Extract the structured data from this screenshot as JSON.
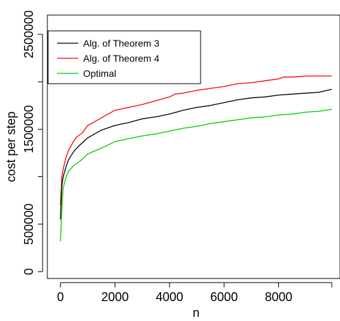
{
  "chart_data": {
    "type": "line",
    "xlabel": "n",
    "ylabel": "cost per step",
    "xlim": [
      0,
      10000
    ],
    "ylim": [
      0,
      2600000
    ],
    "x_ticks": [
      0,
      2000,
      4000,
      6000,
      8000
    ],
    "x_tick_labels": [
      "0",
      "2000",
      "4000",
      "6000",
      "8000"
    ],
    "y_ticks": [
      0,
      500000,
      1500000,
      2500000
    ],
    "y_tick_labels": [
      "0",
      "500000",
      "1500000",
      "2500000"
    ],
    "y_minor_ticks": [
      1000000,
      2000000
    ],
    "legend_position": "top-left",
    "grid": false,
    "series": [
      {
        "name": "Alg. of Theorem 3",
        "color": "#000000",
        "points": [
          [
            0,
            550000
          ],
          [
            50,
            900000
          ],
          [
            100,
            1000000
          ],
          [
            200,
            1100000
          ],
          [
            300,
            1180000
          ],
          [
            500,
            1270000
          ],
          [
            700,
            1330000
          ],
          [
            1000,
            1410000
          ],
          [
            1500,
            1490000
          ],
          [
            2000,
            1540000
          ],
          [
            2500,
            1570000
          ],
          [
            3000,
            1610000
          ],
          [
            3500,
            1630000
          ],
          [
            4000,
            1660000
          ],
          [
            4500,
            1700000
          ],
          [
            5000,
            1730000
          ],
          [
            5500,
            1750000
          ],
          [
            6000,
            1780000
          ],
          [
            6500,
            1810000
          ],
          [
            7000,
            1830000
          ],
          [
            7500,
            1840000
          ],
          [
            8000,
            1860000
          ],
          [
            8500,
            1870000
          ],
          [
            9000,
            1880000
          ],
          [
            9500,
            1890000
          ],
          [
            9950,
            1920000
          ]
        ]
      },
      {
        "name": "Alg. of Theorem 4",
        "color": "#ff0000",
        "points": [
          [
            0,
            700000
          ],
          [
            50,
            1000000
          ],
          [
            100,
            1080000
          ],
          [
            200,
            1200000
          ],
          [
            300,
            1280000
          ],
          [
            500,
            1380000
          ],
          [
            600,
            1420000
          ],
          [
            800,
            1460000
          ],
          [
            1000,
            1540000
          ],
          [
            1200,
            1570000
          ],
          [
            1500,
            1620000
          ],
          [
            2000,
            1700000
          ],
          [
            2500,
            1730000
          ],
          [
            3000,
            1760000
          ],
          [
            3500,
            1800000
          ],
          [
            4000,
            1840000
          ],
          [
            4200,
            1870000
          ],
          [
            4500,
            1880000
          ],
          [
            5000,
            1910000
          ],
          [
            5500,
            1930000
          ],
          [
            6000,
            1950000
          ],
          [
            6500,
            1980000
          ],
          [
            7000,
            1990000
          ],
          [
            7500,
            2010000
          ],
          [
            8000,
            2030000
          ],
          [
            8200,
            2050000
          ],
          [
            8500,
            2050000
          ],
          [
            9000,
            2060000
          ],
          [
            9500,
            2060000
          ],
          [
            9950,
            2060000
          ]
        ]
      },
      {
        "name": "Optimal",
        "color": "#00cc00",
        "points": [
          [
            0,
            320000
          ],
          [
            50,
            650000
          ],
          [
            100,
            880000
          ],
          [
            200,
            990000
          ],
          [
            300,
            1060000
          ],
          [
            500,
            1120000
          ],
          [
            700,
            1160000
          ],
          [
            1000,
            1240000
          ],
          [
            1500,
            1300000
          ],
          [
            2000,
            1370000
          ],
          [
            2500,
            1400000
          ],
          [
            3000,
            1430000
          ],
          [
            3500,
            1450000
          ],
          [
            4000,
            1480000
          ],
          [
            4500,
            1510000
          ],
          [
            5000,
            1530000
          ],
          [
            5500,
            1560000
          ],
          [
            6000,
            1580000
          ],
          [
            6500,
            1600000
          ],
          [
            7000,
            1620000
          ],
          [
            7500,
            1630000
          ],
          [
            8000,
            1650000
          ],
          [
            8500,
            1660000
          ],
          [
            9000,
            1680000
          ],
          [
            9500,
            1690000
          ],
          [
            9950,
            1710000
          ]
        ]
      }
    ]
  }
}
